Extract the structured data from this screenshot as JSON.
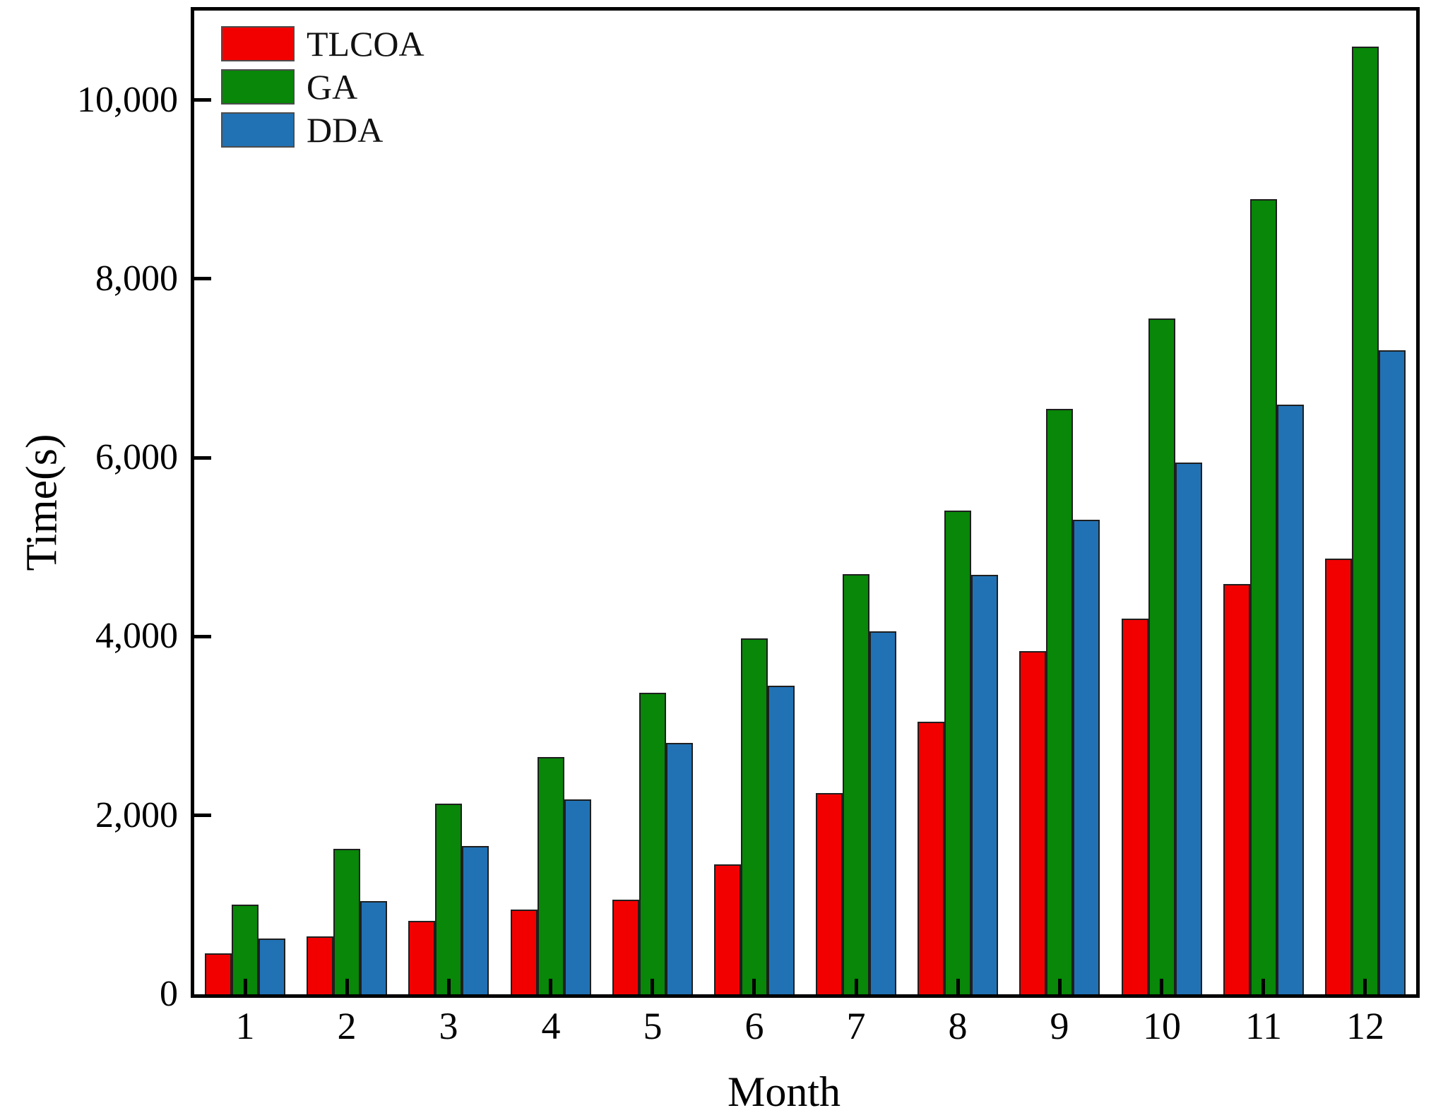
{
  "chart_data": {
    "type": "bar",
    "title": "",
    "xlabel": "Month",
    "ylabel": "Time(s)",
    "categories": [
      "1",
      "2",
      "3",
      "4",
      "5",
      "6",
      "7",
      "8",
      "9",
      "10",
      "11",
      "12"
    ],
    "series": [
      {
        "name": "TLCOA",
        "color": "#f20000",
        "values": [
          460,
          650,
          820,
          950,
          1060,
          1450,
          2250,
          3050,
          3840,
          4200,
          4590,
          4870
        ]
      },
      {
        "name": "GA",
        "color": "#088708",
        "values": [
          1000,
          1630,
          2130,
          2650,
          3370,
          3980,
          4700,
          5410,
          6550,
          7560,
          8890,
          10600
        ]
      },
      {
        "name": "DDA",
        "color": "#2172b4",
        "values": [
          620,
          1040,
          1660,
          2180,
          2810,
          3450,
          4060,
          4690,
          5310,
          5950,
          6590,
          7200
        ]
      }
    ],
    "ylim": [
      0,
      11000
    ],
    "yticks": [
      {
        "value": 0,
        "label": "0"
      },
      {
        "value": 2000,
        "label": "2,000"
      },
      {
        "value": 4000,
        "label": "4,000"
      },
      {
        "value": 6000,
        "label": "6,000"
      },
      {
        "value": 8000,
        "label": "8,000"
      },
      {
        "value": 10000,
        "label": "10,000"
      }
    ],
    "grid": false,
    "legend_position": "upper-left",
    "bar_edge_color": "#1f1f1f",
    "axis_color": "#000000"
  },
  "legend": {
    "items": [
      {
        "label": "TLCOA"
      },
      {
        "label": "GA"
      },
      {
        "label": "DDA"
      }
    ]
  }
}
